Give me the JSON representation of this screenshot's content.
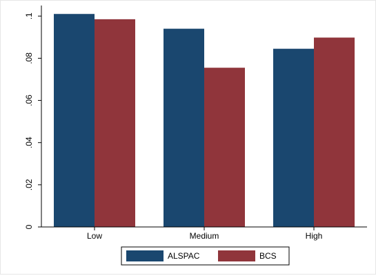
{
  "chart_data": {
    "type": "bar",
    "categories": [
      "Low",
      "Medium",
      "High"
    ],
    "series": [
      {
        "name": "ALSPAC",
        "color": "#1a476f",
        "values": [
          0.101,
          0.094,
          0.0845
        ]
      },
      {
        "name": "BCS",
        "color": "#90353b",
        "values": [
          0.0985,
          0.0755,
          0.0898
        ]
      }
    ],
    "title": "",
    "xlabel": "",
    "ylabel": "",
    "ylim": [
      0,
      0.105
    ],
    "yticks": [
      0,
      0.02,
      0.04,
      0.06,
      0.08,
      0.1
    ],
    "ytick_labels": [
      "0",
      ".02",
      ".04",
      ".06",
      ".08",
      ".1"
    ],
    "grid": false,
    "legend_position": "bottom"
  }
}
